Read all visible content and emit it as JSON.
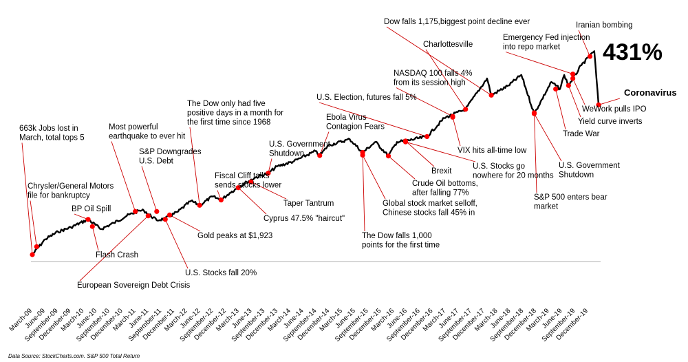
{
  "chart_data": {
    "type": "line",
    "title": "",
    "headline_return": "431%",
    "xlabel": "",
    "ylabel": "",
    "source": "Data Source: StockCharts.com. S&P 500 Total Return",
    "x_ticks": [
      "March-09",
      "June-09",
      "September-09",
      "December-09",
      "March-10",
      "June-10",
      "September-10",
      "December-10",
      "March-11",
      "June-11",
      "September-11",
      "December-11",
      "March-12",
      "June-12",
      "September-12",
      "December-12",
      "March-13",
      "June-13",
      "September-13",
      "December-13",
      "March-14",
      "June-14",
      "September-14",
      "December-14",
      "March-15",
      "June-15",
      "September-15",
      "December-15",
      "March-16",
      "June-16",
      "September-16",
      "December-16",
      "March-17",
      "June-17",
      "September-17",
      "December-17",
      "March-18",
      "June-18",
      "September-18",
      "December-18",
      "March-19",
      "June-19",
      "September-19",
      "December-19"
    ],
    "x_range": [
      "2009-03",
      "2020-03"
    ],
    "y_range_pct": [
      0,
      450
    ],
    "grid": false,
    "legend": "none",
    "colors": {
      "line": "#000000",
      "marker": "#ff0000",
      "leader": "#cc0000",
      "baseline": "#bfbfbf"
    },
    "series": [
      {
        "values": [
          {
            "date": "2009-03",
            "pct": 0
          },
          {
            "date": "2009-06",
            "pct": 35
          },
          {
            "date": "2009-09",
            "pct": 52
          },
          {
            "date": "2009-12",
            "pct": 62
          },
          {
            "date": "2010-04",
            "pct": 80
          },
          {
            "date": "2010-07",
            "pct": 58
          },
          {
            "date": "2010-10",
            "pct": 72
          },
          {
            "date": "2011-01",
            "pct": 88
          },
          {
            "date": "2011-04",
            "pct": 100
          },
          {
            "date": "2011-05",
            "pct": 100
          },
          {
            "date": "2011-08",
            "pct": 78
          },
          {
            "date": "2011-10",
            "pct": 82
          },
          {
            "date": "2012-01",
            "pct": 98
          },
          {
            "date": "2012-04",
            "pct": 122
          },
          {
            "date": "2012-06",
            "pct": 112
          },
          {
            "date": "2012-09",
            "pct": 132
          },
          {
            "date": "2012-11",
            "pct": 124
          },
          {
            "date": "2013-01",
            "pct": 140
          },
          {
            "date": "2013-05",
            "pct": 165
          },
          {
            "date": "2013-07",
            "pct": 175
          },
          {
            "date": "2013-10",
            "pct": 185
          },
          {
            "date": "2013-12",
            "pct": 200
          },
          {
            "date": "2014-04",
            "pct": 212
          },
          {
            "date": "2014-09",
            "pct": 235
          },
          {
            "date": "2014-10",
            "pct": 225
          },
          {
            "date": "2014-12",
            "pct": 248
          },
          {
            "date": "2015-05",
            "pct": 262
          },
          {
            "date": "2015-08",
            "pct": 232
          },
          {
            "date": "2015-11",
            "pct": 256
          },
          {
            "date": "2016-02",
            "pct": 224
          },
          {
            "date": "2016-04",
            "pct": 256
          },
          {
            "date": "2016-06",
            "pct": 258
          },
          {
            "date": "2016-11",
            "pct": 268
          },
          {
            "date": "2017-03",
            "pct": 310
          },
          {
            "date": "2017-08",
            "pct": 330
          },
          {
            "date": "2018-01",
            "pct": 400
          },
          {
            "date": "2018-02",
            "pct": 362
          },
          {
            "date": "2018-06",
            "pct": 384
          },
          {
            "date": "2018-09",
            "pct": 408
          },
          {
            "date": "2018-12",
            "pct": 320
          },
          {
            "date": "2019-04",
            "pct": 392
          },
          {
            "date": "2019-06",
            "pct": 376
          },
          {
            "date": "2019-07",
            "pct": 408
          },
          {
            "date": "2019-08",
            "pct": 384
          },
          {
            "date": "2019-11",
            "pct": 430
          },
          {
            "date": "2020-02",
            "pct": 462
          },
          {
            "date": "2020-03",
            "pct": 340
          }
        ]
      }
    ],
    "annotations": [
      {
        "date": "2009-03",
        "pct": 0,
        "lines": [
          "663k Jobs lost in",
          "March, total tops 5"
        ]
      },
      {
        "date": "2009-04",
        "pct": 18,
        "lines": [
          "Chrysler/General Motors",
          "file for bankruptcy"
        ]
      },
      {
        "date": "2010-04",
        "pct": 80,
        "lines": [
          "BP Oil Spill"
        ]
      },
      {
        "date": "2010-05",
        "pct": 64,
        "lines": [
          "Flash Crash"
        ]
      },
      {
        "date": "2011-03",
        "pct": 98,
        "lines": [
          "Most powerful",
          "earthquake to ever hit"
        ]
      },
      {
        "date": "2011-06",
        "pct": 88,
        "lines": [
          "European Sovereign Debt Crisis"
        ]
      },
      {
        "date": "2011-08",
        "pct": 98,
        "lines": [
          "S&P Downgrades",
          "U.S. Debt"
        ]
      },
      {
        "date": "2011-10",
        "pct": 80,
        "lines": [
          "U.S. Stocks fall 20%"
        ]
      },
      {
        "date": "2011-11",
        "pct": 90,
        "lines": [
          "Gold peaks at $1,923"
        ]
      },
      {
        "date": "2012-06",
        "pct": 112,
        "lines": [
          "The Dow only had five",
          "positive days in a month for",
          "the first time since 1968"
        ]
      },
      {
        "date": "2012-11",
        "pct": 124,
        "lines": [
          "Fiscal Cliff talks",
          "sends stocks lower"
        ]
      },
      {
        "date": "2013-03",
        "pct": 152,
        "lines": [
          "Cyprus 47.5% \"haircut\""
        ]
      },
      {
        "date": "2013-06",
        "pct": 165,
        "lines": [
          "Taper Tantrum"
        ]
      },
      {
        "date": "2013-10",
        "pct": 185,
        "lines": [
          "U.S. Government",
          "Shutdown"
        ]
      },
      {
        "date": "2014-10",
        "pct": 225,
        "lines": [
          "Ebola Virus",
          "Contagion Fears"
        ]
      },
      {
        "date": "2015-08",
        "pct": 232,
        "lines": [
          "The Dow falls 1,000",
          "points for the first time"
        ]
      },
      {
        "date": "2015-08",
        "pct": 226,
        "lines": [
          "Global stock market selloff,",
          "Chinese stocks fall 45% in"
        ]
      },
      {
        "date": "2016-02",
        "pct": 224,
        "lines": [
          "Crude Oil bottoms,",
          "after falling 77%"
        ]
      },
      {
        "date": "2016-06",
        "pct": 258,
        "lines": [
          "Brexit"
        ]
      },
      {
        "date": "2016-06",
        "pct": 256,
        "lines": [
          "U.S. Stocks go",
          "nowhere for 20 months"
        ]
      },
      {
        "date": "2016-11",
        "pct": 268,
        "lines": [
          "U.S. Election, futures fall 5%"
        ]
      },
      {
        "date": "2017-05",
        "pct": 314,
        "lines": [
          "NASDAQ 100 falls 4%",
          "from its  session high"
        ]
      },
      {
        "date": "2017-05",
        "pct": 312,
        "lines": [
          "VIX hits all-time low"
        ]
      },
      {
        "date": "2017-08",
        "pct": 330,
        "lines": [
          "Charlottesville"
        ]
      },
      {
        "date": "2018-02",
        "pct": 362,
        "lines": [
          "Dow falls 1,175,biggest point decline ever"
        ]
      },
      {
        "date": "2018-12",
        "pct": 320,
        "lines": [
          "U.S. Government",
          "Shutdown"
        ]
      },
      {
        "date": "2018-12",
        "pct": 322,
        "lines": [
          "S&P 500 enters bear",
          "market"
        ]
      },
      {
        "date": "2019-05",
        "pct": 376,
        "lines": [
          "Trade War"
        ]
      },
      {
        "date": "2019-08",
        "pct": 384,
        "lines": [
          "Yield curve inverts"
        ]
      },
      {
        "date": "2019-09",
        "pct": 400,
        "lines": [
          "WeWork pulls IPO"
        ]
      },
      {
        "date": "2019-09",
        "pct": 410,
        "lines": [
          "Emergency Fed injection",
          "into repo market"
        ]
      },
      {
        "date": "2020-01",
        "pct": 450,
        "lines": [
          "Iranian bombing"
        ]
      },
      {
        "date": "2020-03",
        "pct": 340,
        "lines": [
          "Coronavirus"
        ],
        "bold": true
      }
    ]
  }
}
